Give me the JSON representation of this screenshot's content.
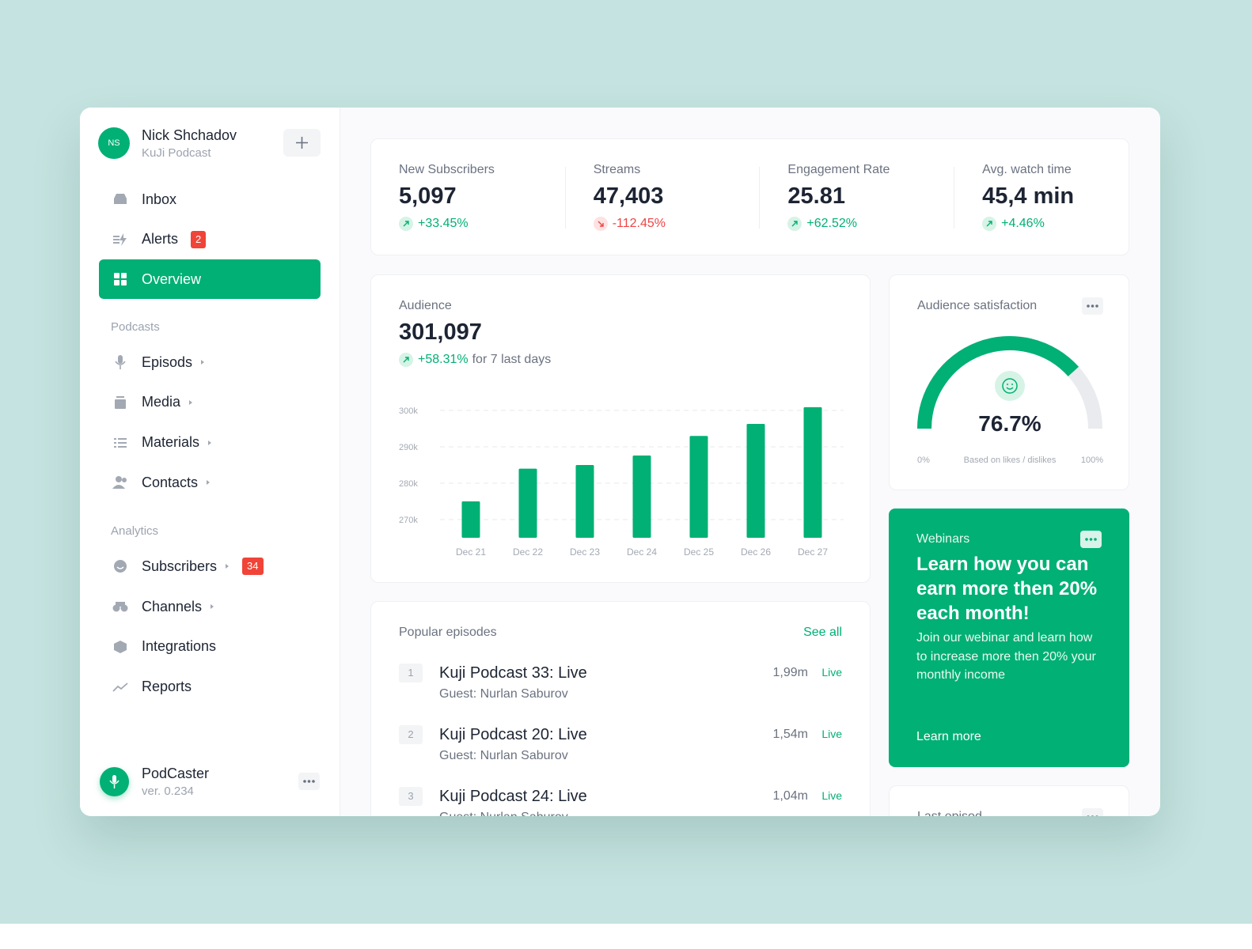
{
  "sidebar": {
    "user": {
      "initials": "NS",
      "name": "Nick Shchadov",
      "subtitle": "KuJi Podcast"
    },
    "nav": [
      {
        "label": "Inbox"
      },
      {
        "label": "Alerts",
        "badge": "2"
      },
      {
        "label": "Overview",
        "active": true
      }
    ],
    "sections": [
      {
        "title": "Podcasts",
        "items": [
          {
            "label": "Episods",
            "submenu": true
          },
          {
            "label": "Media",
            "submenu": true
          },
          {
            "label": "Materials",
            "submenu": true
          },
          {
            "label": "Contacts",
            "submenu": true
          }
        ]
      },
      {
        "title": "Analytics",
        "items": [
          {
            "label": "Subscribers",
            "submenu": true,
            "badge": "34"
          },
          {
            "label": "Channels",
            "submenu": true
          },
          {
            "label": "Integrations"
          },
          {
            "label": "Reports"
          }
        ]
      }
    ],
    "app": {
      "name": "PodCaster",
      "version": "ver. 0.234"
    }
  },
  "stats": [
    {
      "label": "New Subscribers",
      "value": "5,097",
      "change": "+33.45%",
      "trend": "up"
    },
    {
      "label": "Streams",
      "value": "47,403",
      "change": "-112.45%",
      "trend": "down"
    },
    {
      "label": "Engagement Rate",
      "value": "25.81",
      "change": "+62.52%",
      "trend": "up"
    },
    {
      "label": "Avg. watch time",
      "value": "45,4 min",
      "change": "+4.46%",
      "trend": "up"
    }
  ],
  "audience": {
    "label": "Audience",
    "value": "301,097",
    "change": "+58.31%",
    "note": "for 7 last days"
  },
  "chart_data": {
    "type": "bar",
    "categories": [
      "Dec 21",
      "Dec 22",
      "Dec 23",
      "Dec 24",
      "Dec 25",
      "Dec 26",
      "Dec 27"
    ],
    "values": [
      275000,
      284000,
      285000,
      287600,
      293000,
      296300,
      300900
    ],
    "color": "#00b074",
    "ylim": [
      265000,
      302000
    ],
    "yticks": [
      {
        "value": 270000,
        "label": "270k"
      },
      {
        "value": 280000,
        "label": "280k"
      },
      {
        "value": 290000,
        "label": "290k"
      },
      {
        "value": 300000,
        "label": "300k"
      }
    ],
    "grid": true
  },
  "satisfaction": {
    "title": "Audience satisfaction",
    "value": 76.7,
    "value_label": "76.7%",
    "ticks": [
      {
        "value": 0,
        "label": "0%"
      },
      {
        "value": 100,
        "label": "100%"
      }
    ],
    "note": "Based on likes / dislikes",
    "color": "#00b074"
  },
  "webinar": {
    "tag": "Webinars",
    "title": "Learn how you can earn more then 20% each month!",
    "text": "Join our webinar and learn how to increase more then 20% your monthly income",
    "link": "Learn more"
  },
  "episodes": {
    "title": "Popular episodes",
    "link": "See all",
    "items": [
      {
        "rank": "1",
        "title": "Kuji Podcast 33: Live",
        "guest": "Guest: Nurlan Saburov",
        "plays": "1,99m",
        "status": "Live"
      },
      {
        "rank": "2",
        "title": "Kuji Podcast 20: Live",
        "guest": "Guest: Nurlan Saburov",
        "plays": "1,54m",
        "status": "Live"
      },
      {
        "rank": "3",
        "title": "Kuji Podcast 24: Live",
        "guest": "Guest: Nurlan Saburov",
        "plays": "1,04m",
        "status": "Live"
      }
    ]
  },
  "last_episode": {
    "title": "Last episod"
  }
}
